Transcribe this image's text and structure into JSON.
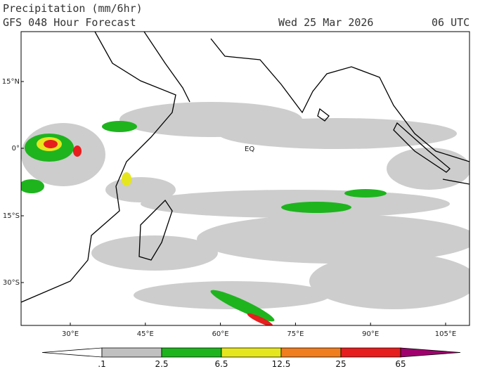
{
  "header": {
    "title": "Precipitation (mm/6hr)",
    "subtitle": "GFS 048 Hour Forecast",
    "date": "Wed 25 Mar 2026",
    "time": "06 UTC"
  },
  "map": {
    "lat_labels": [
      "15°N",
      "0°",
      "15°S",
      "30°S"
    ],
    "lon_labels": [
      "30°E",
      "45°E",
      "60°E",
      "75°E",
      "90°E",
      "105°E"
    ],
    "annotation": "EQ"
  },
  "colorbar": {
    "labels": [
      ".1",
      "2.5",
      "6.5",
      "12.5",
      "25",
      "65"
    ],
    "colors": [
      "#ffffff",
      "#c0c0c0",
      "#1eb41e",
      "#e6e61e",
      "#f07d1e",
      "#e61e1e",
      "#a0006e"
    ]
  }
}
